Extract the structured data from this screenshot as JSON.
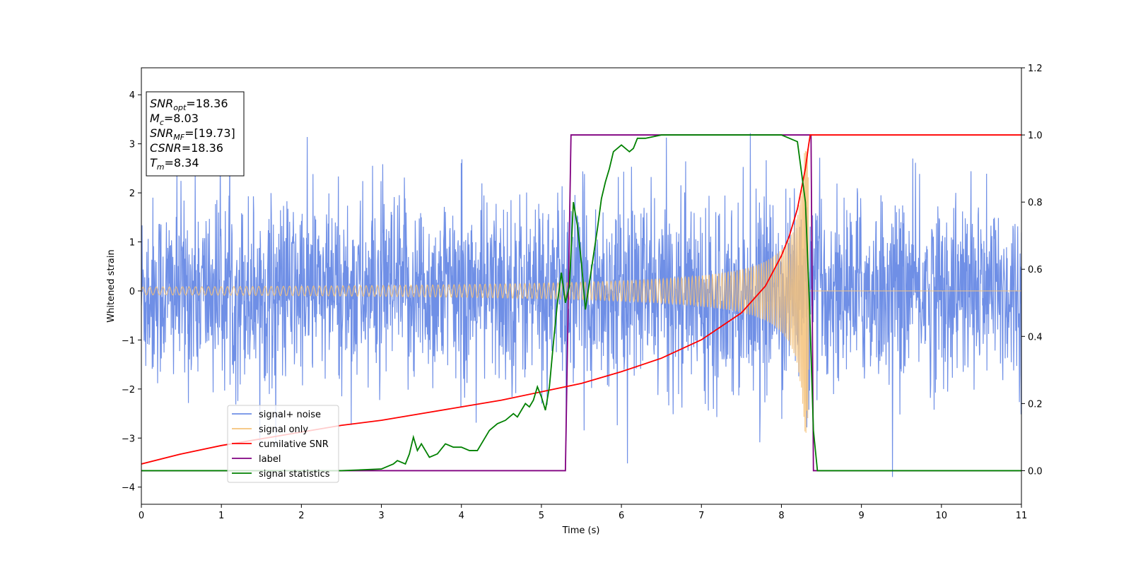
{
  "chart_data": {
    "type": "line",
    "xlabel": "Time (s)",
    "ylabel": "Whitened strain",
    "xlim": [
      0,
      11
    ],
    "ylim": [
      -4.35,
      4.55
    ],
    "y2lim": [
      -0.1,
      1.2
    ],
    "x_ticks": [
      0,
      1,
      2,
      3,
      4,
      5,
      6,
      7,
      8,
      9,
      10,
      11
    ],
    "y_ticks": [
      -4,
      -3,
      -2,
      -1,
      0,
      1,
      2,
      3,
      4
    ],
    "y2_ticks": [
      0.0,
      0.2,
      0.4,
      0.6,
      0.8,
      1.0,
      1.2
    ],
    "y2_tick_labels": [
      "0.0",
      "0.2",
      "0.4",
      "0.6",
      "0.8",
      "1.0",
      "1.2"
    ],
    "legend_position": "lower-left",
    "info_box": {
      "position": "top-left",
      "lines": [
        {
          "var": "SNR",
          "sub": "opt",
          "value": "=18.36"
        },
        {
          "var": "M",
          "sub": "c",
          "value": "=8.03"
        },
        {
          "var": "SNR",
          "sub": "MF",
          "value": "=[19.73]"
        },
        {
          "var": "CSNR",
          "sub": "",
          "value": "=18.36"
        },
        {
          "var": "T",
          "sub": "m",
          "value": "=8.34"
        }
      ]
    },
    "series": [
      {
        "name": "signal+ noise",
        "axis": "left",
        "color": "#6f8fe6",
        "description_envelope": {
          "x": [
            0,
            11
          ],
          "typical_abs": 1.3,
          "peak_max": 4.15,
          "peak_min": -3.9
        }
      },
      {
        "name": "signal only",
        "axis": "left",
        "color": "#f5c27a",
        "chirp": {
          "t_merge": 8.34,
          "amp_start": 0.08,
          "amp_end": 2.9,
          "freq_start": 12
        }
      },
      {
        "name": "cumilative SNR",
        "axis": "right",
        "color": "#ff0000",
        "x": [
          0,
          0.5,
          1,
          1.5,
          2,
          2.5,
          3,
          3.5,
          4,
          4.5,
          5,
          5.5,
          6,
          6.5,
          7,
          7.5,
          7.8,
          8.0,
          8.1,
          8.2,
          8.3,
          8.34,
          8.36,
          8.5,
          9,
          10,
          11
        ],
        "y": [
          0.02,
          0.05,
          0.075,
          0.095,
          0.115,
          0.135,
          0.15,
          0.17,
          0.19,
          0.21,
          0.235,
          0.26,
          0.295,
          0.335,
          0.39,
          0.47,
          0.55,
          0.64,
          0.7,
          0.78,
          0.9,
          0.97,
          1.0,
          1.0,
          1.0,
          1.0,
          1.0
        ]
      },
      {
        "name": "label",
        "axis": "right",
        "color": "#800080",
        "x": [
          0,
          5.3,
          5.37,
          8.37,
          8.4,
          11
        ],
        "y": [
          0,
          0,
          1,
          1,
          0,
          0
        ]
      },
      {
        "name": "signal statistics",
        "axis": "right",
        "color": "#008000",
        "x": [
          0,
          2.5,
          3.0,
          3.1,
          3.15,
          3.2,
          3.3,
          3.35,
          3.4,
          3.45,
          3.5,
          3.55,
          3.6,
          3.7,
          3.8,
          3.9,
          4.0,
          4.1,
          4.2,
          4.25,
          4.3,
          4.35,
          4.45,
          4.55,
          4.65,
          4.7,
          4.75,
          4.8,
          4.85,
          4.9,
          4.95,
          5.0,
          5.05,
          5.1,
          5.15,
          5.2,
          5.25,
          5.3,
          5.35,
          5.4,
          5.45,
          5.5,
          5.55,
          5.6,
          5.7,
          5.75,
          5.8,
          5.85,
          5.9,
          6.0,
          6.1,
          6.15,
          6.2,
          6.3,
          6.5,
          7.0,
          7.5,
          8.0,
          8.1,
          8.2,
          8.3,
          8.35,
          8.4,
          8.45,
          8.5,
          9,
          10,
          11
        ],
        "y": [
          0,
          0,
          0.005,
          0.015,
          0.02,
          0.03,
          0.02,
          0.05,
          0.1,
          0.06,
          0.08,
          0.06,
          0.04,
          0.05,
          0.08,
          0.07,
          0.07,
          0.06,
          0.06,
          0.08,
          0.1,
          0.12,
          0.14,
          0.15,
          0.17,
          0.16,
          0.18,
          0.2,
          0.19,
          0.21,
          0.25,
          0.22,
          0.18,
          0.25,
          0.38,
          0.5,
          0.59,
          0.5,
          0.55,
          0.8,
          0.73,
          0.62,
          0.48,
          0.56,
          0.72,
          0.81,
          0.86,
          0.9,
          0.95,
          0.97,
          0.95,
          0.96,
          0.99,
          0.99,
          1.0,
          1.0,
          1.0,
          1.0,
          0.99,
          0.98,
          0.8,
          0.5,
          0.12,
          0.0,
          0.0,
          0.0,
          0.0,
          0.0
        ]
      }
    ]
  }
}
